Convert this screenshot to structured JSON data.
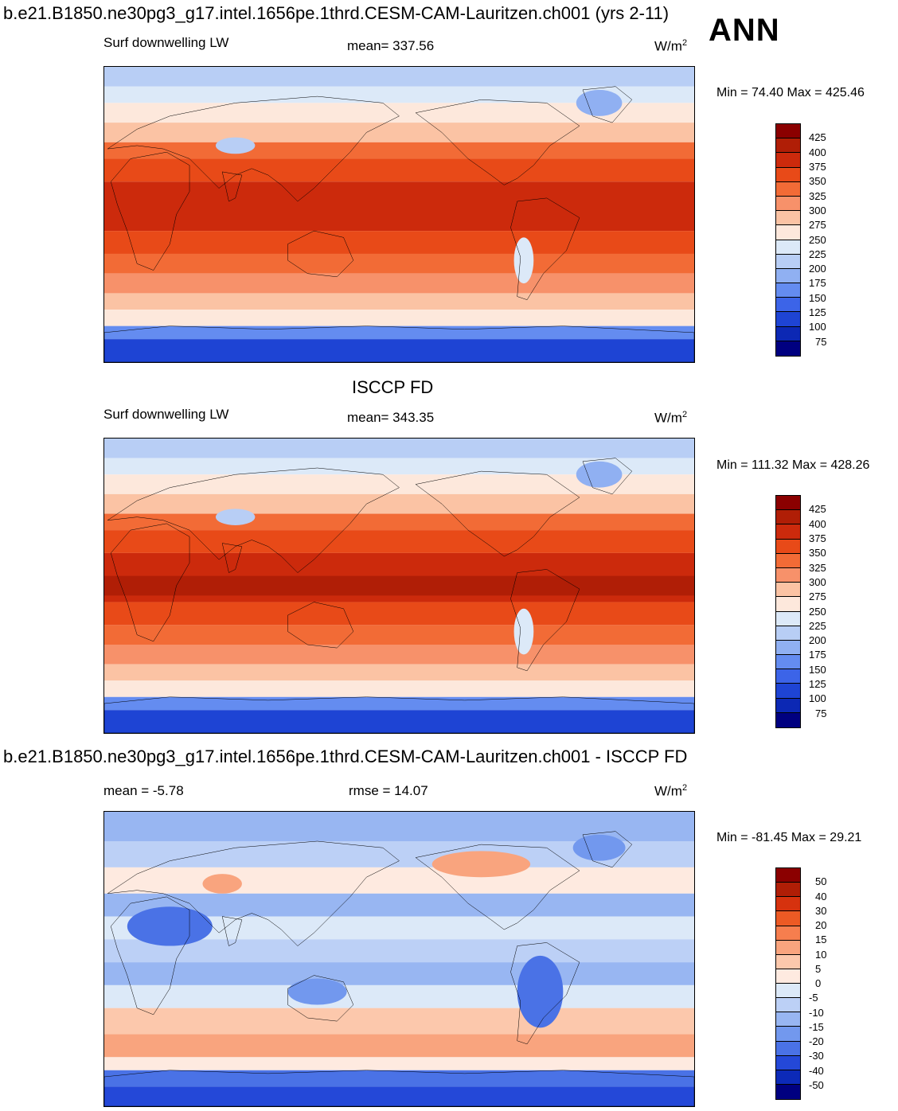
{
  "page": {
    "title": "b.e21.B1850.ne30pg3_g17.intel.1656pe.1thrd.CESM-CAM-Lauritzen.ch001 (yrs 2-11)",
    "season": "ANN"
  },
  "chart_data": [
    {
      "type": "heatmap",
      "id": "model",
      "title": "",
      "variable": "Surf downwelling LW",
      "stat_label": "mean= 337.56",
      "units_base": "W/m",
      "units_exp": "2",
      "minmax": "Min =  74.40 Max = 425.46",
      "levels": [
        "425",
        "400",
        "375",
        "350",
        "325",
        "300",
        "275",
        "250",
        "225",
        "200",
        "175",
        "150",
        "125",
        "100",
        "75"
      ],
      "colors": [
        "#8b0000",
        "#b01e06",
        "#cc2a0c",
        "#e84a18",
        "#f26b36",
        "#f7916a",
        "#fbc3a4",
        "#fde8dc",
        "#dce9f8",
        "#b8cef5",
        "#90b0f2",
        "#648cf0",
        "#3c64e8",
        "#1e44d4",
        "#0c28b4",
        "#000080"
      ]
    },
    {
      "type": "heatmap",
      "id": "obs",
      "title": "ISCCP FD",
      "variable": "Surf downwelling LW",
      "stat_label": "mean= 343.35",
      "units_base": "W/m",
      "units_exp": "2",
      "minmax": "Min = 111.32 Max = 428.26",
      "levels": [
        "425",
        "400",
        "375",
        "350",
        "325",
        "300",
        "275",
        "250",
        "225",
        "200",
        "175",
        "150",
        "125",
        "100",
        "75"
      ],
      "colors": [
        "#8b0000",
        "#b01e06",
        "#cc2a0c",
        "#e84a18",
        "#f26b36",
        "#f7916a",
        "#fbc3a4",
        "#fde8dc",
        "#dce9f8",
        "#b8cef5",
        "#90b0f2",
        "#648cf0",
        "#3c64e8",
        "#1e44d4",
        "#0c28b4",
        "#000080"
      ]
    },
    {
      "type": "heatmap",
      "id": "diff",
      "title": "b.e21.B1850.ne30pg3_g17.intel.1656pe.1thrd.CESM-CAM-Lauritzen.ch001 - ISCCP FD",
      "stat_left": "mean =  -5.78",
      "stat_label": "rmse =  14.07",
      "units_base": "W/m",
      "units_exp": "2",
      "minmax": "Min = -81.45 Max =  29.21",
      "levels": [
        "50",
        "40",
        "30",
        "20",
        "15",
        "10",
        "5",
        "0",
        "-5",
        "-10",
        "-15",
        "-20",
        "-30",
        "-40",
        "-50"
      ],
      "colors": [
        "#8b0000",
        "#b01e06",
        "#d6320e",
        "#ec5a24",
        "#f67e4e",
        "#f9a47e",
        "#fcc8ac",
        "#feeae0",
        "#dce9f8",
        "#bcd0f6",
        "#98b6f2",
        "#7298ee",
        "#4a72e6",
        "#2448d8",
        "#0c2ab8",
        "#000080"
      ]
    }
  ]
}
